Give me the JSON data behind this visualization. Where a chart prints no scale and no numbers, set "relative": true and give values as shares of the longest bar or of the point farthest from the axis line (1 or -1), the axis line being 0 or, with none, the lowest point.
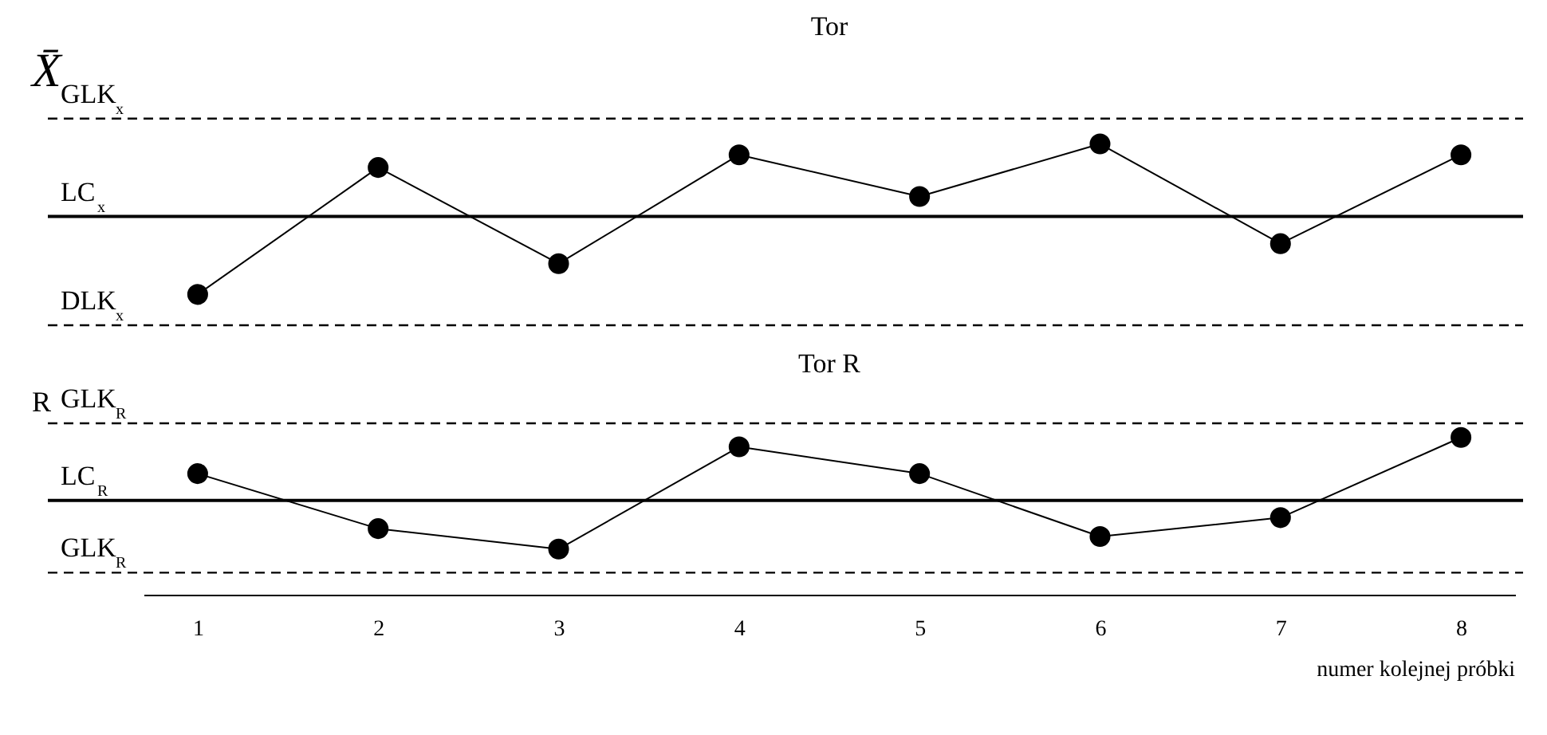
{
  "chart_data": [
    {
      "type": "line",
      "title": "Tor",
      "ylabel": "X̄",
      "categories": [
        "1",
        "2",
        "3",
        "4",
        "5",
        "6",
        "7",
        "8"
      ],
      "values": [
        0.17,
        0.87,
        0.34,
        0.94,
        0.71,
        1,
        0.45,
        0.94
      ],
      "color": "#000000",
      "relative": true,
      "marker": "circle",
      "tick_labels": false,
      "ref_lines": [
        {
          "axis": "y",
          "value": 1.14,
          "label": "GLK$_{x}$",
          "line_style": "dashed",
          "color": "#000000"
        },
        {
          "axis": "y",
          "value": 0.6,
          "label": "LC$_{x}$",
          "line_style": "solid",
          "color": "#000000"
        },
        {
          "axis": "y",
          "value": 0,
          "label": "DLK$_{x}$",
          "line_style": "dashed",
          "color": "#000000"
        }
      ]
    },
    {
      "type": "line",
      "title": "Tor R",
      "ylabel": "R",
      "xlabel": "numer kolejnej próbki",
      "categories": [
        "1",
        "2",
        "3",
        "4",
        "5",
        "6",
        "7",
        "8"
      ],
      "values": [
        0.77,
        0.42,
        0.29,
        0.94,
        0.77,
        0.37,
        0.49,
        1
      ],
      "color": "#000000",
      "relative": true,
      "marker": "circle",
      "tick_labels": "x",
      "ref_lines": [
        {
          "axis": "y",
          "value": 1.09,
          "label": "GLK$_{R}$",
          "line_style": "dashed",
          "color": "#000000"
        },
        {
          "axis": "y",
          "value": 0.6,
          "label": "LC$_{R}$",
          "line_style": "solid",
          "color": "#000000"
        },
        {
          "axis": "y",
          "value": 0.14,
          "label": "GLK$_{R}$",
          "line_style": "dashed",
          "color": "#000000"
        }
      ]
    }
  ]
}
